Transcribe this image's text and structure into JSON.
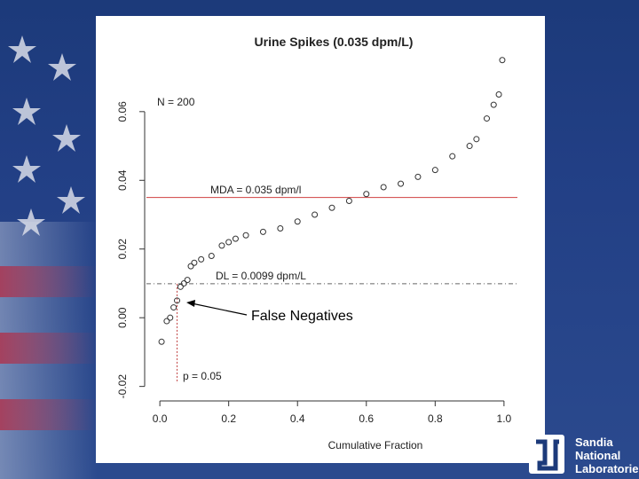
{
  "chart_data": {
    "type": "scatter",
    "title": "Urine Spikes (0.035 dpm/L)",
    "x_label": "Cumulative Fraction",
    "annotations": {
      "n": "N = 200",
      "mda": "MDA = 0.035 dpm/l",
      "dl": "DL = 0.0099 dpm/L",
      "p": "p = 0.05",
      "callout": "False Negatives"
    },
    "reference_lines": {
      "mda": 0.035,
      "dl": 0.0099,
      "p": 0.05
    },
    "xlim": [
      -0.039,
      1.039
    ],
    "ylim": [
      -0.025,
      0.077
    ],
    "xticks": [
      {
        "value": 0,
        "label": "0.0"
      },
      0.2,
      0.4,
      0.6,
      0.8,
      {
        "value": 1,
        "label": "1.0"
      }
    ],
    "yticks": [
      -0.02,
      {
        "value": 0,
        "label": "0.00"
      },
      0.02,
      0.04,
      0.06
    ],
    "color": "#333333",
    "x": [
      0.005,
      0.02,
      0.03,
      0.04,
      0.05,
      0.06,
      0.07,
      0.08,
      0.09,
      0.1,
      0.12,
      0.15,
      0.18,
      0.2,
      0.22,
      0.25,
      0.3,
      0.35,
      0.4,
      0.45,
      0.5,
      0.55,
      0.6,
      0.65,
      0.7,
      0.75,
      0.8,
      0.85,
      0.9,
      0.92,
      0.95,
      0.97,
      0.985,
      0.995
    ],
    "y": [
      -0.007,
      -0.001,
      0.0,
      0.003,
      0.005,
      0.009,
      0.01,
      0.011,
      0.015,
      0.016,
      0.017,
      0.018,
      0.021,
      0.022,
      0.023,
      0.024,
      0.025,
      0.026,
      0.028,
      0.03,
      0.032,
      0.034,
      0.036,
      0.038,
      0.039,
      0.041,
      0.043,
      0.047,
      0.05,
      0.052,
      0.058,
      0.062,
      0.065,
      0.075
    ]
  },
  "logo": {
    "line1": "Sandia",
    "line2": "National",
    "line3": "Laboratories"
  }
}
